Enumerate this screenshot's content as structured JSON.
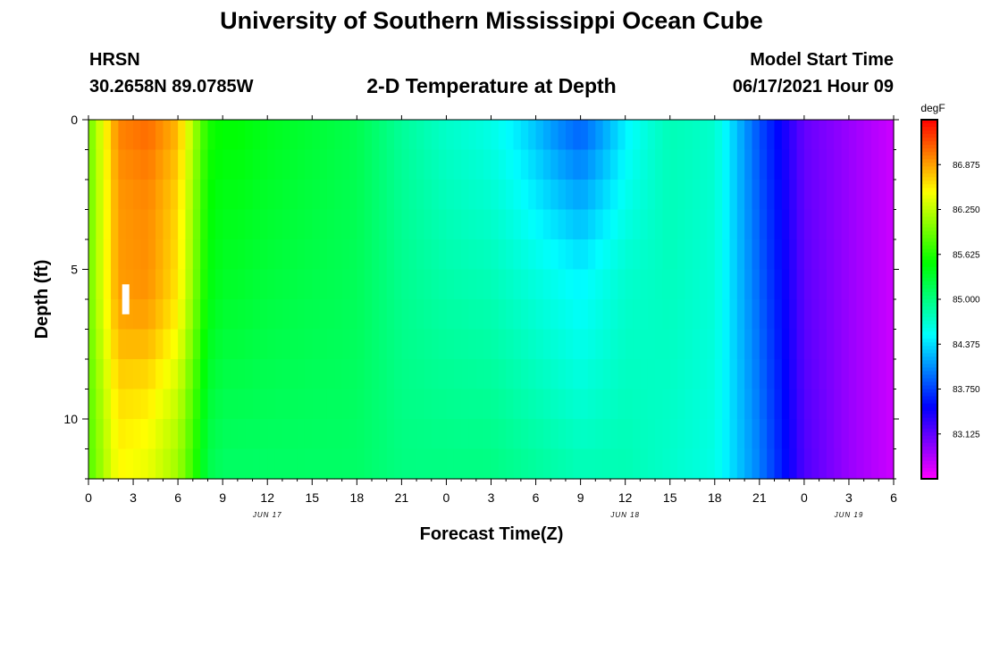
{
  "header": {
    "title": "University of Southern Mississippi Ocean Cube",
    "station": "HRSN",
    "coords": "30.2658N  89.0785W",
    "plot_title": "2-D Temperature at Depth",
    "model_label": "Model Start Time",
    "model_time": "06/17/2021 Hour 09"
  },
  "footer": {
    "title": "University of Southern Mississippi Ocean Cube"
  },
  "chart_data": {
    "type": "heatmap",
    "title": "2-D Temperature at Depth",
    "xlabel": "Forecast Time(Z)",
    "ylabel": "Depth (ft)",
    "x_tick_labels": [
      "0",
      "3",
      "6",
      "9",
      "12",
      "15",
      "18",
      "21",
      "0",
      "3",
      "6",
      "9",
      "12",
      "15",
      "18",
      "21",
      "0",
      "3",
      "6"
    ],
    "x_day_labels": [
      {
        "label": "JUN 17",
        "x_hours": 12
      },
      {
        "label": "JUN 18",
        "x_hours": 36
      },
      {
        "label": "JUN 19",
        "x_hours": 51
      }
    ],
    "x_range_hours": [
      0,
      54
    ],
    "y_range_ft": [
      0,
      12
    ],
    "y_ticks": [
      "0",
      "5",
      "10"
    ],
    "colorbar": {
      "unit": "degF",
      "range": [
        82.5,
        87.5
      ],
      "tick_labels": [
        "86.875",
        "86.250",
        "85.625",
        "85.000",
        "84.375",
        "83.750",
        "83.125"
      ]
    },
    "surface_profile_hours": [
      0,
      2,
      4,
      6,
      7,
      8,
      9,
      10,
      12,
      15,
      18,
      21,
      24,
      27,
      30,
      33,
      36,
      39,
      42,
      45,
      48,
      51,
      54
    ],
    "surface_profile_degF": [
      85.9,
      87.0,
      87.1,
      86.8,
      86.2,
      85.6,
      85.5,
      85.5,
      85.4,
      85.3,
      85.2,
      84.9,
      84.7,
      84.6,
      84.4,
      84.2,
      84.6,
      84.8,
      84.7,
      83.8,
      83.1,
      82.9,
      82.7
    ],
    "near_bottom_profile_degF": [
      85.8,
      86.5,
      86.4,
      86.1,
      85.7,
      85.2,
      85.1,
      85.1,
      85.1,
      85.1,
      85.1,
      85.0,
      85.0,
      85.0,
      84.9,
      84.8,
      84.8,
      84.7,
      84.6,
      84.0,
      83.2,
      82.9,
      82.7
    ],
    "marker": {
      "x_hours": 2.5,
      "depth_ft": [
        5.5,
        6.5
      ]
    }
  }
}
